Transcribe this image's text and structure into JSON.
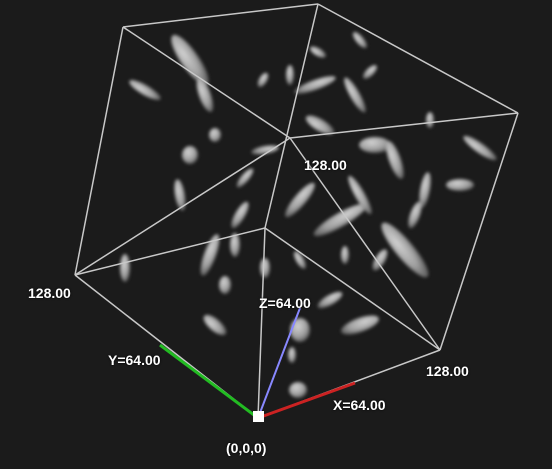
{
  "labels": {
    "x_axis": "X=64.00",
    "y_axis": "Y=64.00",
    "z_axis": "Z=64.00",
    "origin": "(0,0,0)",
    "x_max": "128.00",
    "y_max": "128.00",
    "z_max": "128.00"
  },
  "colors": {
    "background": "#1b1b1b",
    "box_edges": "#c8c8c8",
    "x_axis": "#cc2222",
    "y_axis": "#22bb22",
    "z_axis": "#8888ff",
    "isosurface": "#d8d8d8"
  }
}
